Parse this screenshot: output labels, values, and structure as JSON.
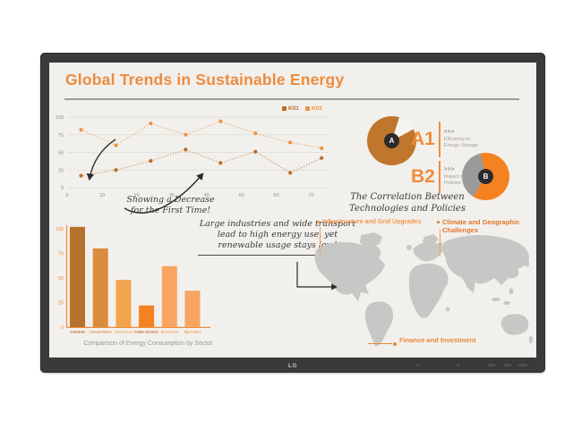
{
  "device": {
    "brand_logo": "LG"
  },
  "slide": {
    "title": "Global Trends in Sustainable Energy",
    "notes": {
      "decrease_line1": "Showing a Decrease",
      "decrease_line2": "for the First Time!",
      "industry": "Large industries and wide transport lead to high energy use, yet renewable usage stays low!",
      "correlation_line1": "The Correlation Between",
      "correlation_line2": "Technologies and Policies"
    },
    "infographic": {
      "a1": {
        "label": "A1",
        "chevrons": ">>>",
        "desc": "Efficiency in Energy Storage"
      },
      "b2": {
        "label": "B2",
        "chevrons": ">>>",
        "desc": "Impact of Energy Policies"
      }
    },
    "map_labels": {
      "infrastructure": "Infrastructure and Grid Upgrades",
      "climate": "Climate and Geographic Challenges",
      "finance": "Finance and Investment"
    }
  },
  "chart_data": [
    {
      "type": "line",
      "title": "",
      "x": [
        4,
        14,
        24,
        34,
        44,
        54,
        64,
        73
      ],
      "x_ticks": [
        0,
        10,
        20,
        30,
        40,
        50,
        60,
        70
      ],
      "xlim": [
        0,
        75
      ],
      "ylim": [
        0,
        100
      ],
      "y_ticks": [
        0,
        25,
        50,
        75,
        100
      ],
      "grid": true,
      "line_style": "dotted",
      "legend_position": "top-right",
      "series": [
        {
          "name": "K01",
          "color": "#b96d2c",
          "values": [
            17,
            25,
            38,
            54,
            35,
            51,
            21,
            42
          ]
        },
        {
          "name": "K02",
          "color": "#f0913e",
          "values": [
            82,
            60,
            91,
            75,
            94,
            77,
            64,
            56
          ]
        }
      ]
    },
    {
      "type": "bar",
      "title": "Comparison of Energy Consumption by Sector",
      "categories": [
        "Industrial",
        "Transportation",
        "Commercial",
        "Public Services",
        "Residential",
        "Agriculture"
      ],
      "values": [
        102,
        80,
        48,
        22,
        62,
        37
      ],
      "bar_colors": [
        "#b5722b",
        "#d98c3c",
        "#f3a44c",
        "#f58220",
        "#f9a55f",
        "#f5a561"
      ],
      "label_colors": [
        "#a5651f",
        "#d98c3c",
        "#f3a44c",
        "#c05a15",
        "#f9a55f",
        "#ef953f"
      ],
      "ylim": [
        0,
        100
      ],
      "y_ticks": [
        0,
        25,
        50,
        75,
        100
      ],
      "axis_color": "#f08c3c"
    },
    {
      "type": "pie",
      "label": "A1",
      "center_letter": "A",
      "value_pct": 88,
      "slices": [
        {
          "color": "#c0762c",
          "from": 0,
          "to": 18
        },
        {
          "color": "#f6f4f0",
          "from": 18,
          "to": 62
        },
        {
          "color": "#c0762c",
          "from": 62,
          "to": 360
        }
      ]
    },
    {
      "type": "pie",
      "label": "B2",
      "center_letter": "B",
      "value_pct": 62,
      "slices": [
        {
          "color": "#f58220",
          "from": 0,
          "to": 212
        },
        {
          "color": "#9b9b9b",
          "from": 212,
          "to": 348
        },
        {
          "color": "#f58220",
          "from": 348,
          "to": 360
        }
      ]
    }
  ],
  "colors": {
    "accent_orange": "#ed8c3e",
    "k01": "#b96d2c",
    "k02": "#f0913e",
    "map_gray": "#c7c7c5",
    "slide_bg": "#f2f0ec",
    "bezel": "#3a3a3a",
    "donut_b_gray": "#9b9b9b",
    "ink": "#3a3a3a"
  }
}
